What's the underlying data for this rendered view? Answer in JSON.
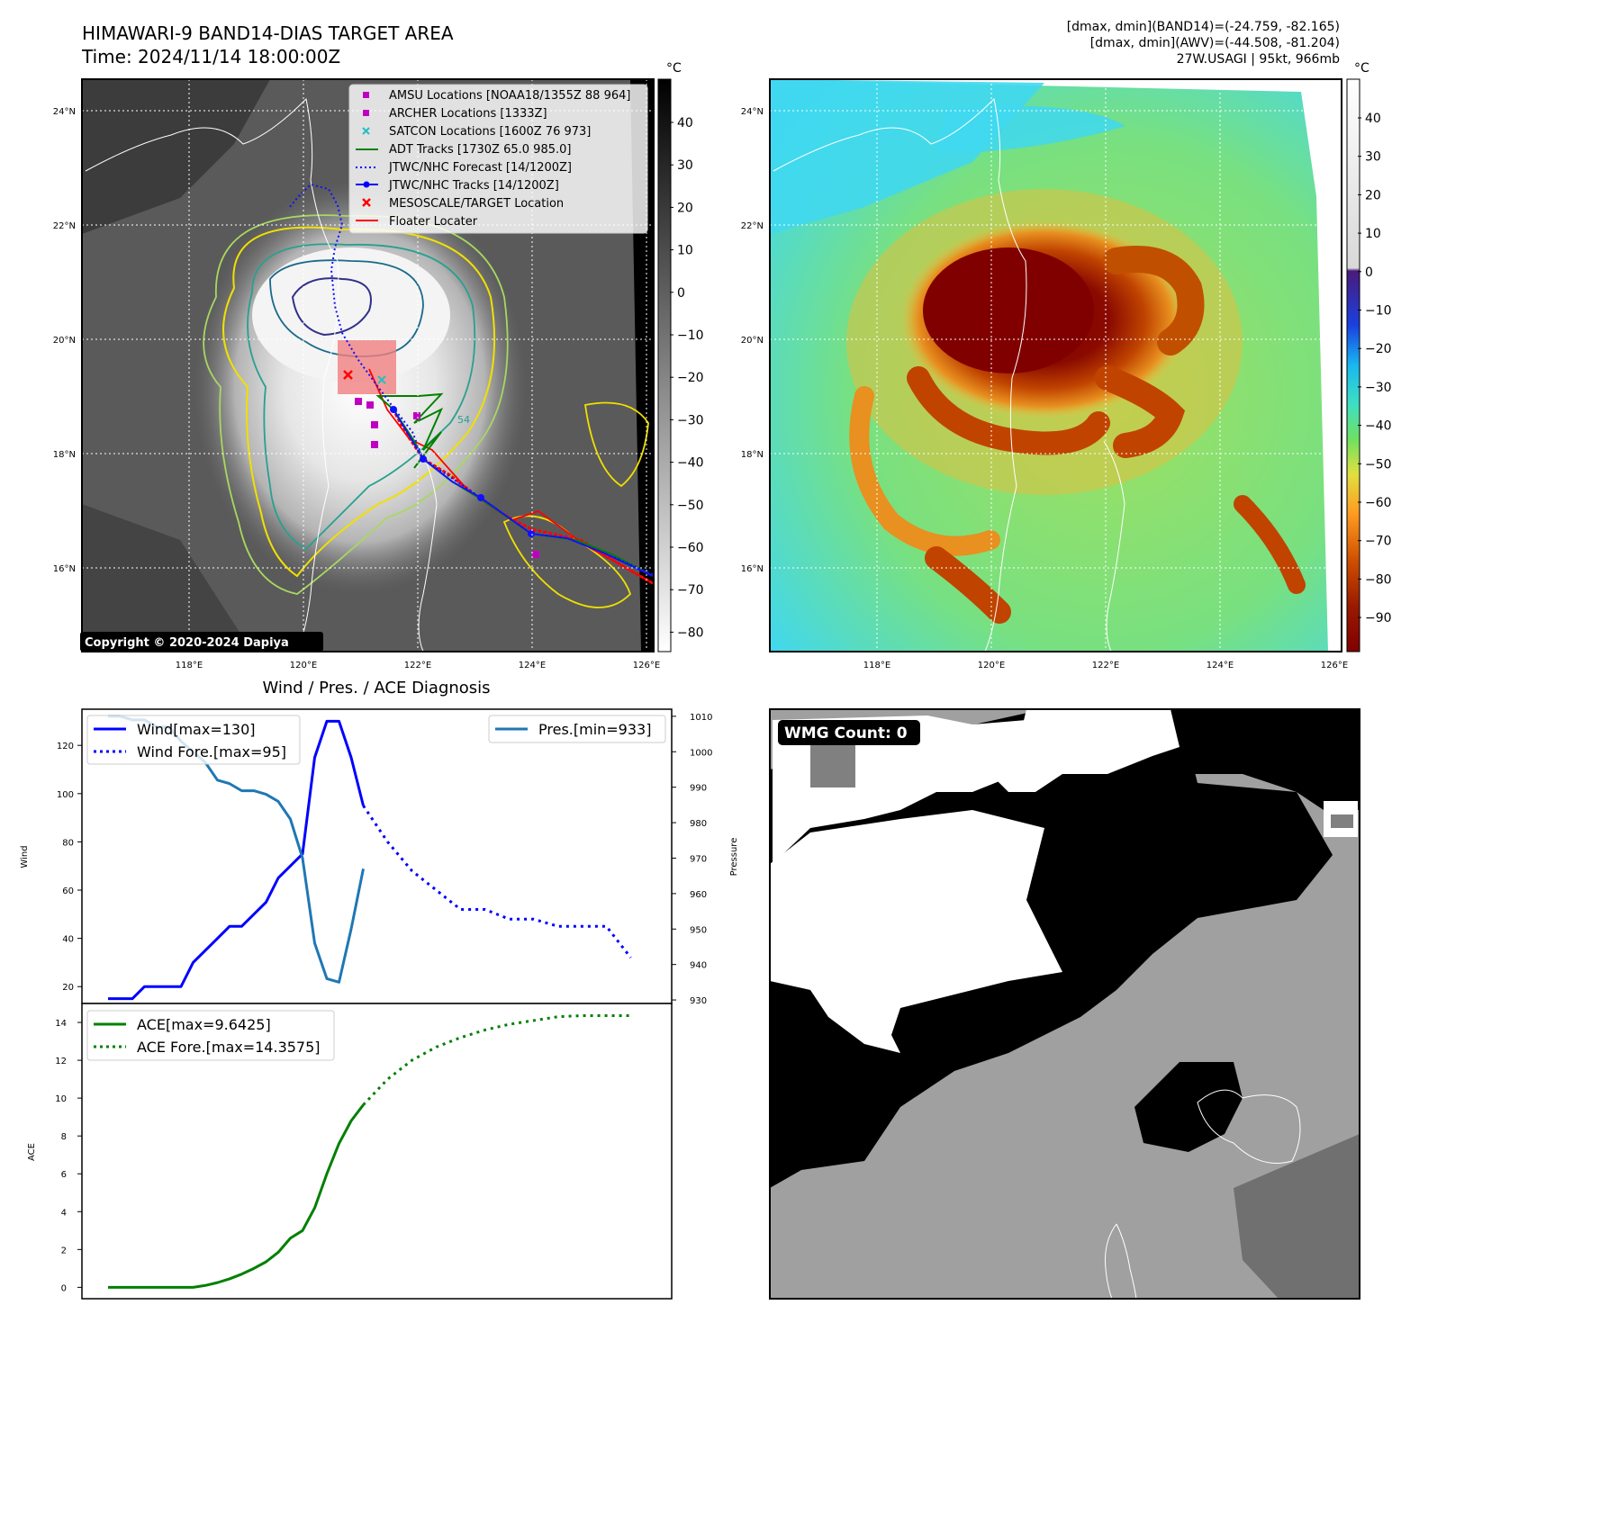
{
  "header": {
    "title_line1": "HIMAWARI-9 BAND14-DIAS TARGET AREA",
    "title_line2": "Time: 2024/11/14 18:00:00Z",
    "info_line1": "[dmax, dmin](BAND14)=(-24.759, -82.165)",
    "info_line2": "[dmax, dmin](AWV)=(-44.508, -81.204)",
    "info_line3": "27W.USAGI | 95kt, 966mb"
  },
  "maps": {
    "lat_labels": [
      "24°N",
      "22°N",
      "20°N",
      "18°N",
      "16°N"
    ],
    "lon_labels": [
      "118°E",
      "120°E",
      "122°E",
      "124°E",
      "126°E"
    ],
    "copyright": "Copyright © 2020-2024 Dapiya",
    "contour_label": "54",
    "ir_colorbar": {
      "unit": "°C",
      "ticks": [
        "40",
        "30",
        "20",
        "10",
        "0",
        "−10",
        "−20",
        "−30",
        "−40",
        "−50",
        "−60",
        "−70",
        "−80"
      ]
    },
    "awv_colorbar": {
      "unit": "°C",
      "ticks": [
        "40",
        "30",
        "20",
        "10",
        "0",
        "−10",
        "−20",
        "−30",
        "−40",
        "−50",
        "−60",
        "−70",
        "−80",
        "−90"
      ]
    },
    "legend": [
      {
        "label": "AMSU Locations [NOAA18/1355Z 88 964]",
        "color": "#c000c0",
        "marker": "square"
      },
      {
        "label": "ARCHER Locations [1333Z]",
        "color": "#c000c0",
        "marker": "square"
      },
      {
        "label": "SATCON Locations [1600Z 76 973]",
        "color": "#20c0c0",
        "marker": "x"
      },
      {
        "label": "ADT Tracks [1730Z 65.0 985.0]",
        "color": "#008000",
        "marker": "line"
      },
      {
        "label": "JTWC/NHC Forecast [14/1200Z]",
        "color": "#0000ff",
        "marker": "dotted"
      },
      {
        "label": "JTWC/NHC Tracks [14/1200Z]",
        "color": "#0000ff",
        "marker": "line-dot"
      },
      {
        "label": "MESOSCALE/TARGET Location",
        "color": "#ff0000",
        "marker": "x"
      },
      {
        "label": "Floater Locater",
        "color": "#ff0000",
        "marker": "line"
      }
    ]
  },
  "wmg": {
    "label": "WMG Count: 0"
  },
  "chart_data": [
    {
      "type": "line",
      "title": "Wind / Pres. / ACE Diagnosis",
      "xlabel": "",
      "ylabel": "Wind",
      "ylabel2": "Pressure",
      "ylim": [
        13,
        135
      ],
      "y2lim": [
        929,
        1012
      ],
      "yticks": [
        20,
        40,
        60,
        80,
        100,
        120
      ],
      "y2ticks": [
        930,
        940,
        950,
        960,
        970,
        980,
        990,
        1000,
        1010
      ],
      "series": [
        {
          "name": "Wind[max=130]",
          "color": "#0000ff",
          "style": "solid",
          "axis": "left",
          "x": [
            0,
            1,
            2,
            3,
            4,
            5,
            6,
            7,
            8,
            9,
            10,
            11,
            12,
            13,
            14,
            15,
            16,
            17,
            18,
            19,
            20,
            21
          ],
          "values": [
            15,
            15,
            15,
            20,
            20,
            20,
            20,
            30,
            35,
            40,
            45,
            45,
            50,
            55,
            65,
            70,
            75,
            115,
            130,
            130,
            115,
            95
          ]
        },
        {
          "name": "Wind Fore.[max=95]",
          "color": "#0000ff",
          "style": "dotted",
          "axis": "left",
          "x": [
            21,
            23,
            25,
            27,
            29,
            31,
            33,
            35,
            37,
            39,
            41,
            43
          ],
          "values": [
            95,
            80,
            68,
            60,
            52,
            52,
            48,
            48,
            45,
            45,
            45,
            32
          ]
        },
        {
          "name": "Pres.[min=933]",
          "color": "#1f77b4",
          "style": "solid",
          "axis": "right",
          "x": [
            0,
            1,
            2,
            3,
            4,
            5,
            6,
            7,
            8,
            9,
            10,
            11,
            12,
            13,
            14,
            15,
            16,
            17,
            18,
            19,
            20,
            21
          ],
          "values": [
            1010,
            1010,
            1009,
            1009,
            1007,
            1007,
            1003,
            1000,
            997,
            992,
            991,
            989,
            989,
            988,
            986,
            981,
            970,
            946,
            936,
            935,
            950,
            967
          ]
        }
      ]
    },
    {
      "type": "line",
      "xlabel": "",
      "ylabel": "ACE",
      "ylim": [
        -0.6,
        15
      ],
      "yticks": [
        0,
        2,
        4,
        6,
        8,
        10,
        12,
        14
      ],
      "series": [
        {
          "name": "ACE[max=9.6425]",
          "color": "#008000",
          "style": "solid",
          "x": [
            0,
            1,
            2,
            3,
            4,
            5,
            6,
            7,
            8,
            9,
            10,
            11,
            12,
            13,
            14,
            15,
            16,
            17,
            18,
            19,
            20,
            21
          ],
          "values": [
            0,
            0,
            0,
            0,
            0,
            0,
            0,
            0,
            0.1,
            0.25,
            0.45,
            0.7,
            1.0,
            1.35,
            1.85,
            2.6,
            3.0,
            4.2,
            6.0,
            7.6,
            8.8,
            9.6425
          ]
        },
        {
          "name": "ACE Fore.[max=14.3575]",
          "color": "#008000",
          "style": "dotted",
          "x": [
            21,
            23,
            25,
            27,
            29,
            31,
            33,
            35,
            37,
            39,
            41,
            43
          ],
          "values": [
            9.6425,
            11.0,
            12.0,
            12.7,
            13.2,
            13.6,
            13.9,
            14.1,
            14.3,
            14.3575,
            14.3575,
            14.3575
          ]
        }
      ]
    }
  ]
}
